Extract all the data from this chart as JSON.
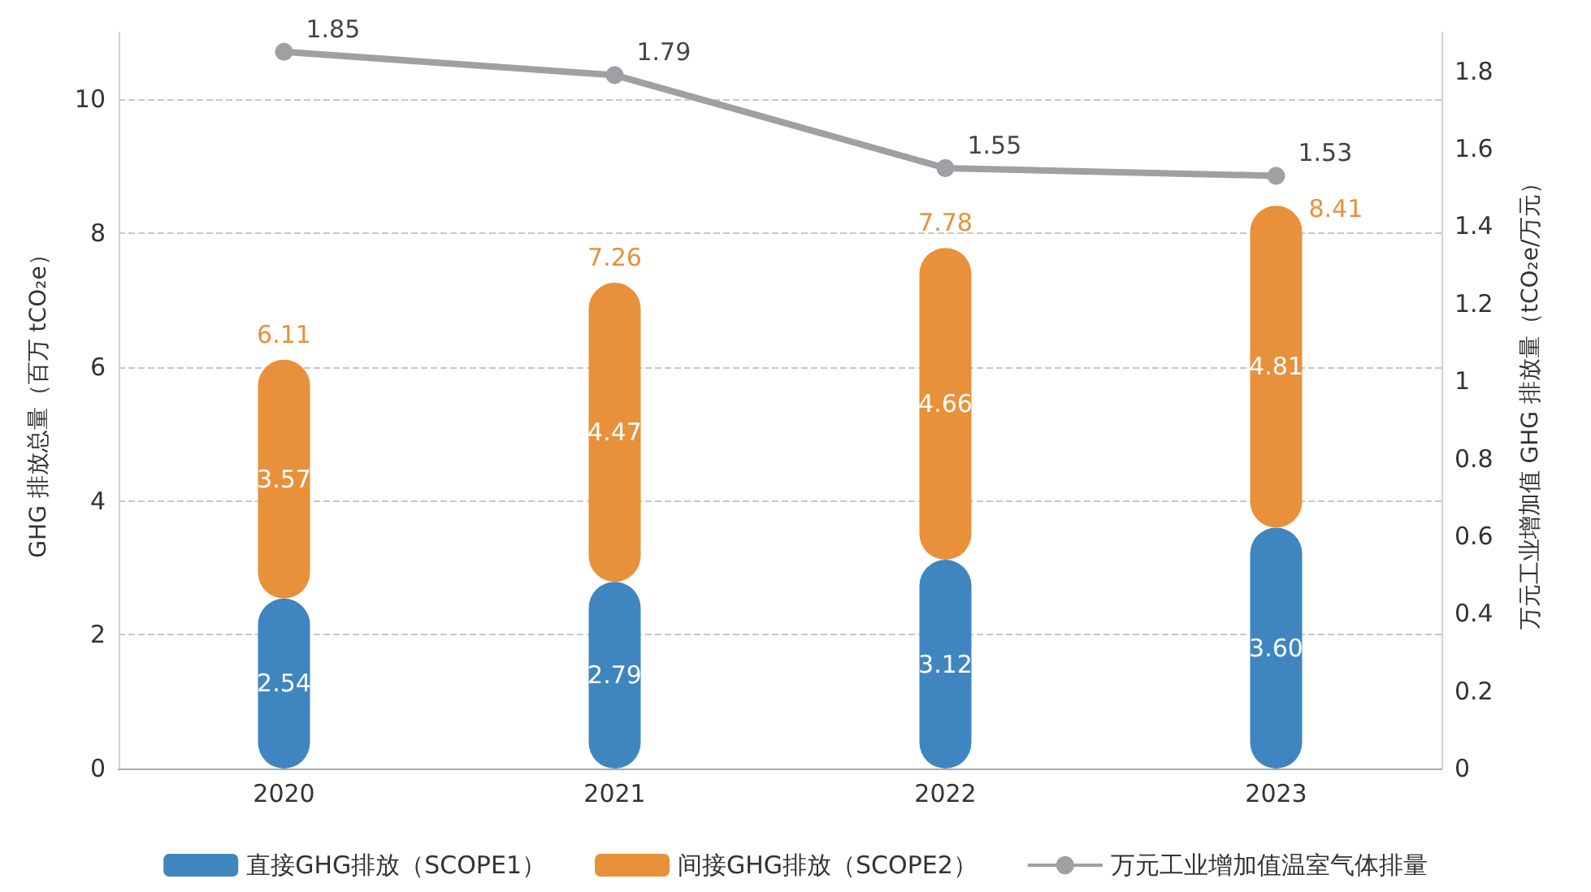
{
  "chart_data": {
    "type": "bar",
    "stacked": true,
    "categories": [
      "2020",
      "2021",
      "2022",
      "2023"
    ],
    "ylabel": "GHG 排放总量（百万 tCO₂e）",
    "y2label": "万元工业增加值 GHG 排放量（tCO₂e/万元）",
    "ylim": [
      0,
      11
    ],
    "yticks": [
      0,
      2,
      4,
      6,
      8,
      10
    ],
    "y2lim": [
      0,
      1.9
    ],
    "y2ticks": [
      0,
      0.2,
      0.4,
      0.6,
      0.8,
      1,
      1.2,
      1.4,
      1.6,
      1.8
    ],
    "series": [
      {
        "name": "直接GHG排放（SCOPE1）",
        "color": "#3f86c0",
        "values": [
          2.54,
          2.79,
          3.12,
          3.6
        ],
        "value_labels": [
          "2.54",
          "2.79",
          "3.12",
          "3.60"
        ]
      },
      {
        "name": "间接GHG排放（SCOPE2）",
        "color": "#e8903a",
        "values": [
          3.57,
          4.47,
          4.66,
          4.81
        ]
      },
      {
        "name": "万元工业增加值温室气体排量",
        "type": "line",
        "axis": "y2",
        "color": "#a0a0a4",
        "values": [
          1.85,
          1.79,
          1.55,
          1.53
        ],
        "marker": "circle"
      }
    ],
    "totals": [
      "6.11",
      "7.26",
      "7.78",
      "8.41"
    ],
    "data_labels": true,
    "grid": "y",
    "legend": "bottom"
  }
}
